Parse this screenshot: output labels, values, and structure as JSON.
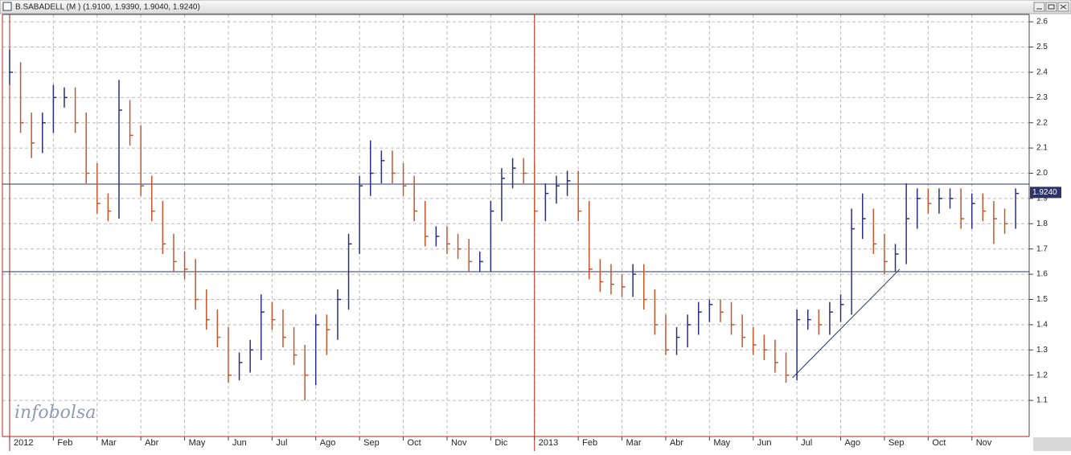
{
  "chart_data": {
    "type": "ohlc",
    "title": "B.SABADELL (M ) (1.9100, 1.9390, 1.9040, 1.9240)",
    "watermark": "infobolsa",
    "up_color": "#2a2f86",
    "down_color": "#c4572c",
    "grid": true,
    "xlim": [
      -0.165,
      23.31
    ],
    "ylim": [
      0.957,
      2.629
    ],
    "xticks": [
      {
        "value": 0,
        "label": "2012"
      },
      {
        "value": 1,
        "label": "Feb"
      },
      {
        "value": 2,
        "label": "Mar"
      },
      {
        "value": 3,
        "label": "Abr"
      },
      {
        "value": 4,
        "label": "May"
      },
      {
        "value": 5,
        "label": "Jun"
      },
      {
        "value": 6,
        "label": "Jul"
      },
      {
        "value": 7,
        "label": "Ago"
      },
      {
        "value": 8,
        "label": "Sep"
      },
      {
        "value": 9,
        "label": "Oct"
      },
      {
        "value": 10,
        "label": "Nov"
      },
      {
        "value": 11,
        "label": "Dic"
      },
      {
        "value": 12,
        "label": "2013"
      },
      {
        "value": 13,
        "label": "Feb"
      },
      {
        "value": 14,
        "label": "Mar"
      },
      {
        "value": 15,
        "label": "Abr"
      },
      {
        "value": 16,
        "label": "May"
      },
      {
        "value": 17,
        "label": "Jun"
      },
      {
        "value": 18,
        "label": "Jul"
      },
      {
        "value": 19,
        "label": "Ago"
      },
      {
        "value": 20,
        "label": "Sep"
      },
      {
        "value": 21,
        "label": "Oct"
      },
      {
        "value": 22,
        "label": "Nov"
      }
    ],
    "yticks": [
      1.1,
      1.2,
      1.3,
      1.4,
      1.5,
      1.6,
      1.7,
      1.8,
      1.9,
      {
        "value": 2,
        "label": "2.0"
      },
      2.1,
      2.2,
      2.3,
      2.4,
      2.5,
      2.6
    ],
    "x": [
      0,
      0.25,
      0.5,
      0.75,
      1,
      1.25,
      1.5,
      1.75,
      2,
      2.25,
      2.5,
      2.75,
      3,
      3.25,
      3.5,
      3.75,
      4,
      4.25,
      4.5,
      4.75,
      5,
      5.25,
      5.5,
      5.75,
      6,
      6.25,
      6.5,
      6.75,
      7,
      7.25,
      7.5,
      7.75,
      8,
      8.25,
      8.5,
      8.75,
      9,
      9.25,
      9.5,
      9.75,
      10,
      10.25,
      10.5,
      10.75,
      11,
      11.25,
      11.5,
      11.75,
      12,
      12.25,
      12.5,
      12.75,
      13,
      13.25,
      13.5,
      13.75,
      14,
      14.25,
      14.5,
      14.75,
      15,
      15.25,
      15.5,
      15.75,
      16,
      16.25,
      16.5,
      16.75,
      17,
      17.25,
      17.5,
      17.75,
      18,
      18.25,
      18.5,
      18.75,
      19,
      19.25,
      19.5,
      19.75,
      20,
      20.25,
      20.5,
      20.75,
      21,
      21.25,
      21.5,
      21.75,
      22,
      22.25,
      22.5,
      22.75,
      23
    ],
    "high": [
      2.49,
      2.44,
      2.24,
      2.24,
      2.35,
      2.34,
      2.34,
      2.24,
      2.04,
      1.92,
      2.37,
      2.29,
      2.19,
      1.99,
      1.89,
      1.76,
      1.69,
      1.66,
      1.54,
      1.46,
      1.39,
      1.29,
      1.34,
      1.52,
      1.49,
      1.46,
      1.39,
      1.32,
      1.44,
      1.44,
      1.54,
      1.76,
      1.99,
      2.13,
      2.09,
      2.09,
      2.04,
      1.99,
      1.89,
      1.79,
      1.79,
      1.76,
      1.74,
      1.69,
      1.89,
      2.02,
      2.06,
      2.06,
      2.04,
      1.96,
      1.99,
      2.01,
      2.01,
      1.89,
      1.66,
      1.64,
      1.6,
      1.64,
      1.64,
      1.54,
      1.44,
      1.39,
      1.44,
      1.49,
      1.5,
      1.5,
      1.49,
      1.44,
      1.39,
      1.36,
      1.34,
      1.29,
      1.46,
      1.46,
      1.46,
      1.49,
      1.52,
      1.86,
      1.92,
      1.86,
      1.76,
      1.72,
      1.96,
      1.94,
      1.94,
      1.94,
      1.94,
      1.94,
      1.92,
      1.92,
      1.89,
      1.86,
      1.94
    ],
    "low": [
      2.35,
      2.16,
      2.06,
      2.08,
      2.16,
      2.26,
      2.16,
      1.96,
      1.84,
      1.81,
      1.82,
      2.11,
      1.91,
      1.81,
      1.68,
      1.61,
      1.58,
      1.46,
      1.38,
      1.31,
      1.17,
      1.18,
      1.21,
      1.26,
      1.38,
      1.31,
      1.24,
      1.1,
      1.16,
      1.28,
      1.34,
      1.46,
      1.68,
      1.91,
      1.96,
      1.96,
      1.91,
      1.81,
      1.71,
      1.71,
      1.68,
      1.66,
      1.61,
      1.61,
      1.61,
      1.81,
      1.94,
      1.96,
      1.8,
      1.81,
      1.88,
      1.91,
      1.81,
      1.58,
      1.53,
      1.52,
      1.51,
      1.51,
      1.46,
      1.36,
      1.28,
      1.28,
      1.31,
      1.36,
      1.41,
      1.41,
      1.36,
      1.31,
      1.28,
      1.26,
      1.21,
      1.17,
      1.18,
      1.38,
      1.36,
      1.36,
      1.41,
      1.44,
      1.74,
      1.68,
      1.6,
      1.61,
      1.64,
      1.78,
      1.84,
      1.84,
      1.86,
      1.78,
      1.78,
      1.81,
      1.72,
      1.76,
      1.78
    ],
    "close": [
      2.4,
      2.2,
      2.12,
      2.2,
      2.3,
      2.3,
      2.2,
      2,
      1.88,
      1.85,
      2.25,
      2.15,
      1.95,
      1.85,
      1.72,
      1.65,
      1.62,
      1.5,
      1.42,
      1.35,
      1.2,
      1.25,
      1.3,
      1.45,
      1.42,
      1.35,
      1.28,
      1.2,
      1.4,
      1.38,
      1.5,
      1.72,
      1.95,
      2,
      2.05,
      2,
      1.95,
      1.85,
      1.75,
      1.75,
      1.72,
      1.7,
      1.65,
      1.65,
      1.85,
      1.98,
      2.02,
      2,
      1.85,
      1.92,
      1.95,
      1.97,
      1.85,
      1.62,
      1.57,
      1.56,
      1.55,
      1.6,
      1.5,
      1.4,
      1.3,
      1.35,
      1.4,
      1.45,
      1.48,
      1.45,
      1.4,
      1.35,
      1.32,
      1.3,
      1.25,
      1.2,
      1.42,
      1.42,
      1.4,
      1.45,
      1.48,
      1.78,
      1.82,
      1.72,
      1.65,
      1.68,
      1.82,
      1.9,
      1.88,
      1.9,
      1.9,
      1.82,
      1.88,
      1.85,
      1.82,
      1.8,
      1.92
    ],
    "hlines": [
      1.957,
      1.61
    ],
    "trendline": {
      "x": [
        17.9,
        20.35
      ],
      "y": [
        1.19,
        1.62
      ]
    },
    "last_price": {
      "value": 1.924,
      "label": "1.9240"
    }
  }
}
